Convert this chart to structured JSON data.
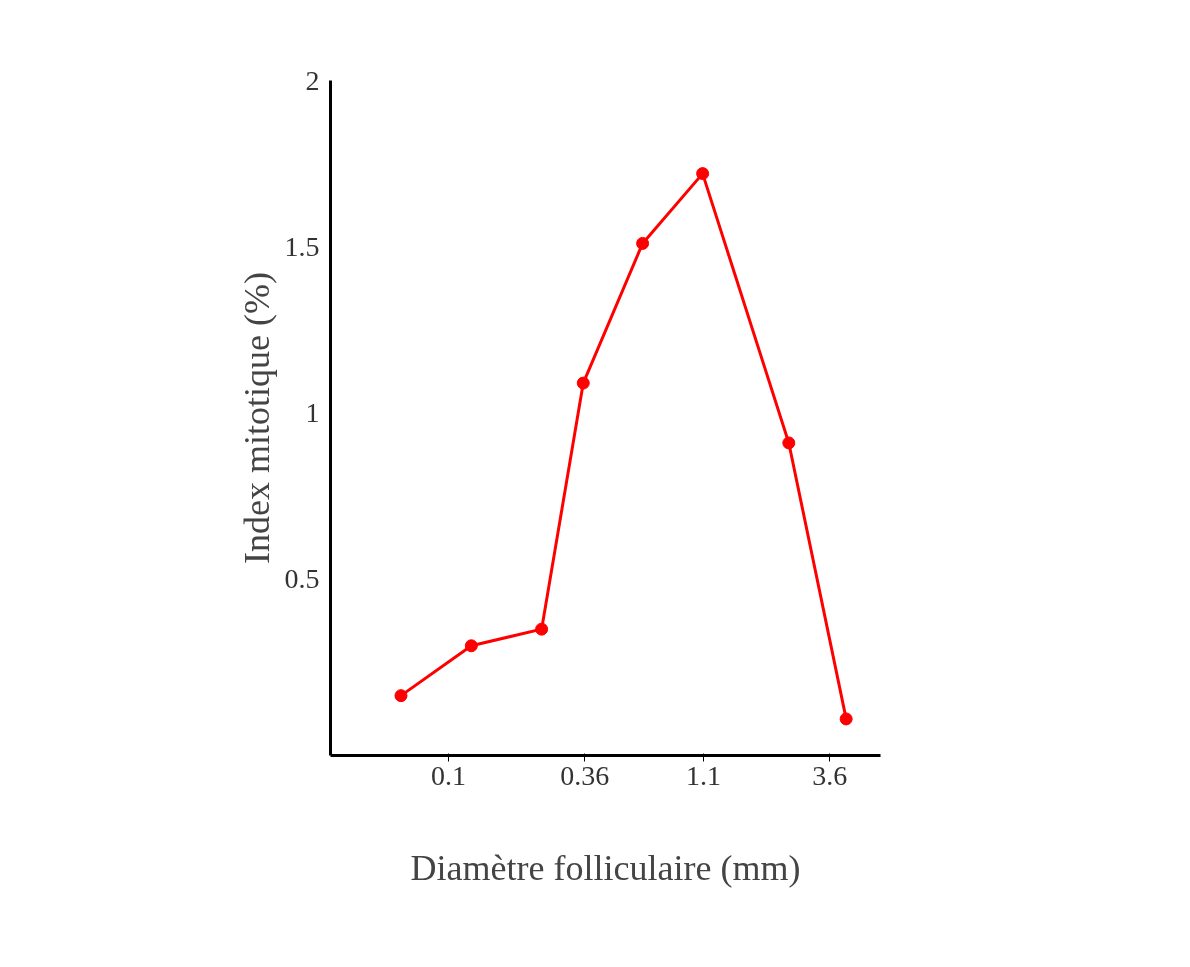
{
  "chart_data": {
    "type": "line",
    "xlabel": "Diamètre folliculaire (mm)",
    "ylabel": "Index mitotique (%)",
    "x": [
      0.064,
      0.124,
      0.24,
      0.355,
      0.62,
      1.09,
      2.45,
      4.2
    ],
    "series": [
      {
        "color": "#ff0000",
        "values": [
          0.15,
          0.3,
          0.35,
          1.09,
          1.51,
          1.72,
          0.91,
          0.08
        ]
      }
    ],
    "log": "x",
    "xlim": [
      0.033,
      5.8
    ],
    "xticks": [
      0.1,
      0.36,
      1.1,
      3.6
    ],
    "ylim": [
      -0.03,
      2
    ],
    "yticks": [
      0.5,
      1,
      1.5,
      2
    ],
    "grid": false,
    "marker": "circle",
    "line_style": "solid"
  }
}
